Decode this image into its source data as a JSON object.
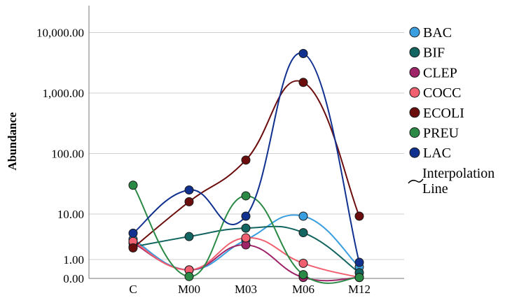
{
  "chart_data": {
    "type": "line",
    "ylabel": "Abundance",
    "xlabel": "",
    "y_scale": "log (with 0 baseline)",
    "x_categories": [
      "C",
      "M00",
      "M03",
      "M06",
      "M12"
    ],
    "y_ticks": [
      {
        "value": 0,
        "label": "0.00"
      },
      {
        "value": 1,
        "label": "1.00"
      },
      {
        "value": 10,
        "label": "10.00"
      },
      {
        "value": 100,
        "label": "100.00"
      },
      {
        "value": 1000,
        "label": "1,000.00"
      },
      {
        "value": 10000,
        "label": "10,000.00"
      }
    ],
    "grid": "horizontal",
    "legend_position": "right",
    "series": [
      {
        "name": "BAC",
        "color": "#3a9fe0",
        "values": [
          2.8,
          0.45,
          2.7,
          9,
          0.6
        ]
      },
      {
        "name": "BIF",
        "color": "#126560",
        "values": [
          1.9,
          3.2,
          4.9,
          3.9,
          0.3
        ]
      },
      {
        "name": "CLEP",
        "color": "#a02468",
        "values": [
          2.3,
          0.45,
          2.1,
          0.05,
          0.05
        ]
      },
      {
        "name": "COCC",
        "color": "#f06070",
        "values": [
          2.5,
          0.45,
          3.0,
          0.8,
          0.05
        ]
      },
      {
        "name": "ECOLI",
        "color": "#6b0d0d",
        "values": [
          1.8,
          16,
          78,
          1500,
          9
        ]
      },
      {
        "name": "PREU",
        "color": "#2a8a45",
        "values": [
          30,
          0.1,
          20,
          0.2,
          0.05
        ]
      },
      {
        "name": "LAC",
        "color": "#10318f",
        "values": [
          3.8,
          25,
          9,
          4500,
          0.85
        ]
      }
    ],
    "legend": {
      "interpolation_label_line1": "Interpolation",
      "interpolation_label_line2": "Line"
    }
  }
}
